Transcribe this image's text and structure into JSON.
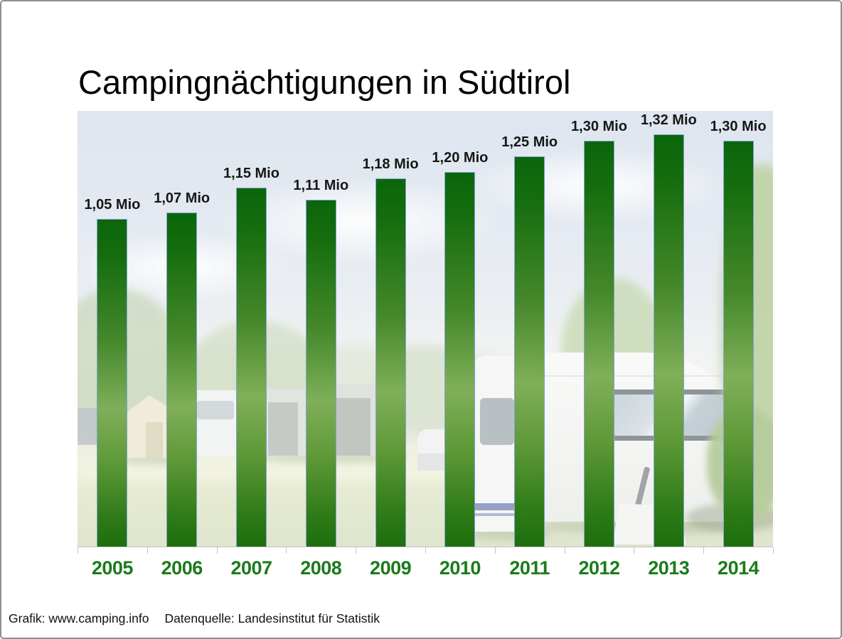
{
  "title": "Campingnächtigungen in Südtirol",
  "footer": {
    "credit": "Grafik: www.camping.info",
    "source": "Datenquelle: Landesinstitut für Statistik"
  },
  "chart_data": {
    "type": "bar",
    "title": "Campingnächtigungen in Südtirol",
    "categories": [
      "2005",
      "2006",
      "2007",
      "2008",
      "2009",
      "2010",
      "2011",
      "2012",
      "2013",
      "2014"
    ],
    "values": [
      1.05,
      1.07,
      1.15,
      1.11,
      1.18,
      1.2,
      1.25,
      1.3,
      1.32,
      1.3
    ],
    "value_labels": [
      "1,05 Mio",
      "1,07 Mio",
      "1,15 Mio",
      "1,11 Mio",
      "1,18 Mio",
      "1,20 Mio",
      "1,25 Mio",
      "1,30 Mio",
      "1,32 Mio",
      "1,30 Mio"
    ],
    "unit": "Mio",
    "xlabel": "",
    "ylabel": "",
    "ylim": [
      0,
      1.395
    ],
    "grid": false,
    "legend": false,
    "bar_color_top": "#0b660b",
    "bar_color_light": "#80af59",
    "bar_color_bottom": "#1d6e0d",
    "bar_border_color": "#7ea4d4",
    "value_label_color": "#171717",
    "category_label_color": "#1b7b1b",
    "background_description": "faded camping site photo with caravans, tents and trees"
  }
}
